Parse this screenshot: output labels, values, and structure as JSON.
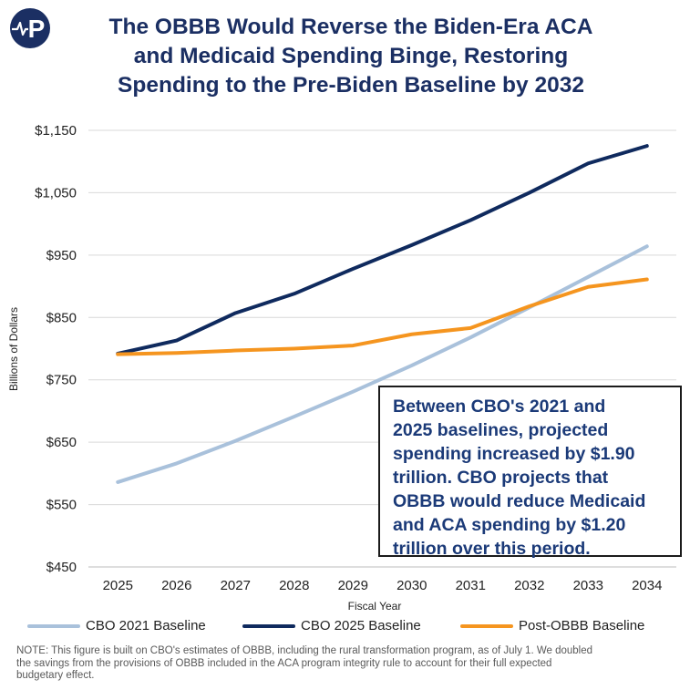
{
  "title_lines": [
    "The OBBB Would Reverse the Biden-Era ACA",
    "and Medicaid Spending Binge, Restoring",
    "Spending to the Pre-Biden Baseline by 2032"
  ],
  "logo": {
    "initial": "P",
    "accent": "#ffffff",
    "background": "#1b2f63"
  },
  "callout_lines": [
    "Between CBO's 2021 and",
    "2025 baselines, projected",
    "spending increased by $1.90",
    "trillion. CBO projects that",
    "OBBB would reduce Medicaid",
    "and ACA spending by $1.20",
    "trillion over this period."
  ],
  "note_lines": [
    "NOTE: This figure is built on CBO's estimates of OBBB, including the rural transformation program, as of July 1. We doubled",
    "the savings from the provisions of OBBB included in the ACA program integrity rule to account for their full expected",
    "budgetary effect."
  ],
  "chart_data": {
    "type": "line",
    "xlabel": "Fiscal Year",
    "ylabel": "Billions of Dollars",
    "x": [
      "2025",
      "2026",
      "2027",
      "2028",
      "2029",
      "2030",
      "2031",
      "2032",
      "2033",
      "2034"
    ],
    "y_ticks": [
      "$450",
      "$550",
      "$650",
      "$750",
      "$850",
      "$950",
      "$1,050",
      "$1,150"
    ],
    "ylim": [
      450,
      1150
    ],
    "grid": "horizontal",
    "legend_position": "bottom",
    "series": [
      {
        "name": "CBO 2021 Baseline",
        "color": "#a9c1db",
        "values": [
          586,
          616,
          652,
          691,
          731,
          773,
          818,
          866,
          915,
          964
        ]
      },
      {
        "name": "CBO 2025 Baseline",
        "color": "#0f2a5e",
        "values": [
          792,
          813,
          857,
          888,
          928,
          966,
          1006,
          1050,
          1097,
          1125
        ]
      },
      {
        "name": "Post-OBBB Baseline",
        "color": "#f5951f",
        "values": [
          791,
          793,
          797,
          800,
          805,
          823,
          833,
          868,
          899,
          911
        ]
      }
    ]
  }
}
